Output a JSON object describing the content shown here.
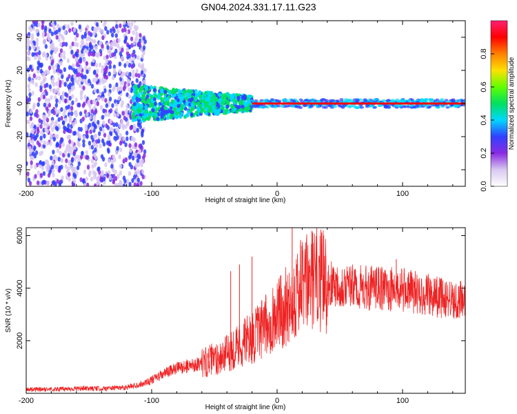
{
  "title": "GN04.2024.331.17.11.G23",
  "chart_data": [
    {
      "type": "heatmap",
      "title": "GN04.2024.331.17.11.G23",
      "xlabel": "Height of straight line (km)",
      "ylabel": "Frequency (Hz)",
      "xlim": [
        -200,
        150
      ],
      "ylim": [
        -50,
        50
      ],
      "xticks": [
        -200,
        -100,
        0,
        100
      ],
      "yticks": [
        -40,
        -20,
        0,
        20,
        40
      ],
      "colorbar": {
        "label": "Normalized spectral amplitude",
        "range": [
          0,
          1
        ],
        "ticks": [
          0.0,
          0.2,
          0.4,
          0.6,
          0.8
        ],
        "colormap": [
          "#ffffff",
          "#d8c8f0",
          "#8a2be2",
          "#3040ff",
          "#00d8ff",
          "#00e060",
          "#60ff00",
          "#ffe000",
          "#ff8000",
          "#ff0000",
          "#ff2070"
        ]
      },
      "regions": [
        {
          "name": "noise",
          "x_range": [
            -200,
            -105
          ],
          "freq_range": [
            -50,
            50
          ],
          "amplitude": 0.15
        },
        {
          "name": "transition",
          "x_range": [
            -115,
            -20
          ],
          "freq_range": [
            -12,
            10
          ],
          "amplitude": 0.3
        },
        {
          "name": "tone",
          "x_range": [
            -20,
            150
          ],
          "freq_center": 0,
          "amplitude": 0.95
        }
      ],
      "colors": {
        "signal_line": "#ff0000"
      }
    },
    {
      "type": "line",
      "xlabel": "Height of straight line (km)",
      "ylabel": "SNR (10 * v/v)",
      "xlim": [
        -200,
        150
      ],
      "ylim": [
        0,
        6300
      ],
      "xticks": [
        -200,
        -100,
        0,
        100
      ],
      "yticks": [
        2000,
        4000,
        6000
      ],
      "x": [
        -200,
        -180,
        -160,
        -140,
        -120,
        -110,
        -100,
        -90,
        -80,
        -70,
        -60,
        -50,
        -40,
        -35,
        -30,
        -25,
        -20,
        -15,
        -10,
        -5,
        0,
        5,
        10,
        15,
        20,
        25,
        30,
        35,
        40,
        50,
        60,
        70,
        80,
        90,
        100,
        110,
        120,
        130,
        140,
        150
      ],
      "y": [
        150,
        150,
        180,
        180,
        230,
        330,
        500,
        750,
        950,
        1050,
        1150,
        1300,
        1500,
        1700,
        1850,
        2000,
        2100,
        2300,
        2500,
        2800,
        3000,
        3200,
        3500,
        3800,
        4100,
        4200,
        4400,
        4300,
        4200,
        4150,
        4050,
        4000,
        4000,
        3950,
        3950,
        3850,
        3750,
        3650,
        3550,
        3500
      ],
      "peak_envelope": [
        {
          "x": -37,
          "y": 4650
        },
        {
          "x": -30,
          "y": 4900
        },
        {
          "x": -20,
          "y": 5200
        },
        {
          "x": 12,
          "y": 6300
        },
        {
          "x": 35,
          "y": 5500
        },
        {
          "x": 95,
          "y": 5100
        }
      ],
      "colors": {
        "line": "#ee2222"
      }
    }
  ]
}
